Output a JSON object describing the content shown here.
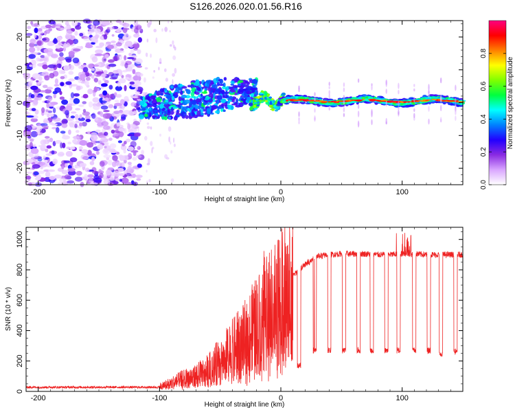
{
  "figure": {
    "title": "S126.2026.020.01.56.R16"
  },
  "chart_data": [
    {
      "type": "heatmap",
      "xlabel": "Height of straight line (km)",
      "ylabel": "Frequency (Hz)",
      "xlim": [
        -210,
        150
      ],
      "ylim": [
        -25,
        25
      ],
      "xticks": [
        -200,
        -100,
        0,
        100
      ],
      "yticks": [
        -20,
        -10,
        0,
        10,
        20
      ],
      "colorbar": {
        "label": "Normalized spectral amplitude",
        "range": [
          0,
          1
        ],
        "ticks": [
          0.0,
          0.2,
          0.4,
          0.6,
          0.8
        ],
        "tick_labels": [
          "0.0",
          "0.2",
          "0.4",
          "0.6",
          "0.8"
        ],
        "colors": [
          "#ffffff",
          "#d9a6ff",
          "#8a2be2",
          "#2200ff",
          "#0080ff",
          "#00ffff",
          "#00ff40",
          "#80ff00",
          "#ffff00",
          "#ff8000",
          "#ff0000",
          "#ff0080"
        ]
      },
      "description_of_regions": [
        {
          "x_range": [
            -210,
            -120
          ],
          "freq_range": [
            -25,
            25
          ],
          "amplitude": "low (0.05-0.25) noise"
        },
        {
          "x_range": [
            -120,
            -20
          ],
          "freq_range": [
            -6,
            9
          ],
          "amplitude": "0.2-0.45 scattered signal"
        },
        {
          "x_range": [
            -20,
            150
          ],
          "freq_center": 0.5,
          "amplitude": "0.5-0.95 narrow carrier line"
        }
      ]
    },
    {
      "type": "line",
      "xlabel": "Height of straight line (km)",
      "ylabel": "SNR (10 * v/v)",
      "xlim": [
        -210,
        150
      ],
      "ylim": [
        0,
        1080
      ],
      "xticks": [
        -200,
        -100,
        0,
        100
      ],
      "yticks": [
        0,
        200,
        400,
        600,
        800,
        1000
      ],
      "color": "#ee2222",
      "series": [
        {
          "name": "SNR",
          "x": [
            -210,
            -150,
            -120,
            -110,
            -100,
            -90,
            -80,
            -70,
            -60,
            -50,
            -40,
            -30,
            -20,
            -10,
            0,
            10,
            20,
            30,
            40,
            50,
            60,
            70,
            80,
            90,
            100,
            110,
            120,
            130,
            140,
            150
          ],
          "values": [
            25,
            25,
            25,
            25,
            35,
            60,
            90,
            110,
            150,
            220,
            290,
            360,
            470,
            560,
            640,
            760,
            840,
            890,
            900,
            905,
            905,
            905,
            900,
            900,
            905,
            905,
            900,
            900,
            900,
            900
          ]
        }
      ],
      "dropouts": {
        "x": [
          15,
          28,
          40,
          52,
          64,
          75,
          87,
          97,
          110,
          122,
          132,
          144
        ],
        "min_values": [
          150,
          250,
          250,
          250,
          250,
          250,
          250,
          250,
          250,
          250,
          220,
          240
        ]
      }
    }
  ]
}
